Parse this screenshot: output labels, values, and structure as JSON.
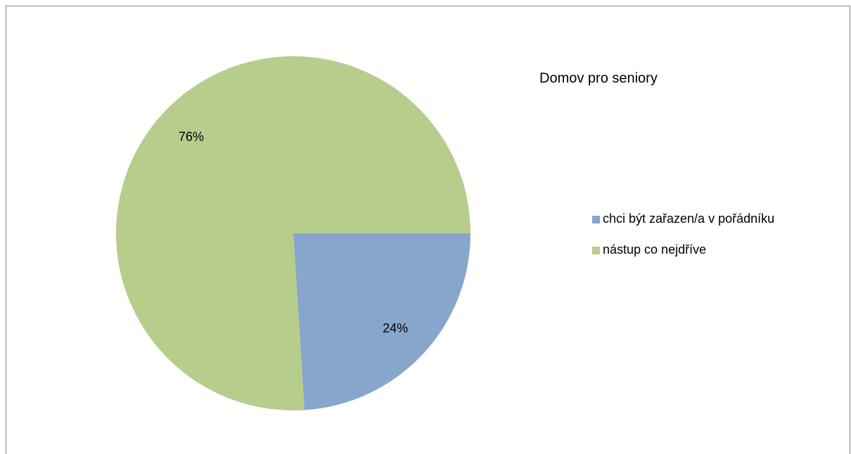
{
  "chart_data": {
    "type": "pie",
    "title": "Domov pro seniory",
    "categories": [
      "chci být zařazen/a v pořádníku",
      "nástup co nejdříve"
    ],
    "values": [
      24,
      76
    ],
    "value_labels": [
      "24%",
      "76%"
    ],
    "colors": [
      "#88a6cc",
      "#b7cd8b"
    ]
  }
}
